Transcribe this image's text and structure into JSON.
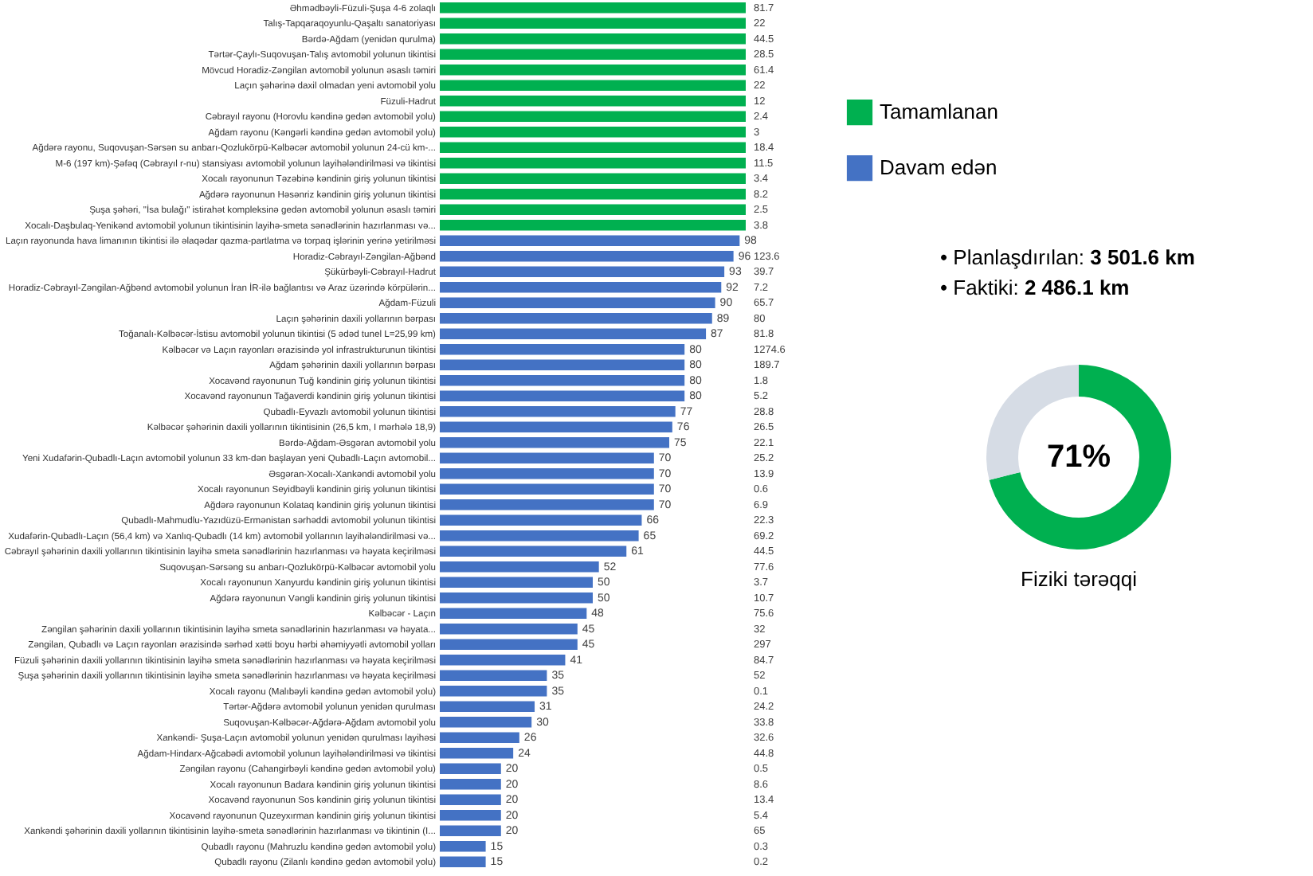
{
  "chart_data": [
    {
      "type": "bar",
      "orientation": "horizontal",
      "tick_labels": "y",
      "legend": "top right",
      "categories": [
        "Əhmədbəyli-Füzuli-Şuşa 4-6 zolaqlı",
        "Talış-Tapqaraqoyunlu-Qaşaltı sanatoriyası",
        "Bərdə-Ağdam (yenidən qurulma)",
        "Tərtər-Çaylı-Suqovuşan-Talış avtomobil yolunun tikintisi",
        "Mövcud Horadiz-Zəngilan avtomobil yolunun əsaslı təmiri",
        "Laçın şəhərinə daxil olmadan yeni avtomobil yolu",
        "Füzuli-Hadrut",
        "Cəbrayıl rayonu (Horovlu kəndinə gedən avtomobil yolu)",
        "Ağdam rayonu (Kəngərli kəndinə gedən avtomobil yolu)",
        "Ağdərə rayonu, Suqovuşan-Sərsən su anbarı-Qozlukörpü-Kəlbəcər avtomobil yolunun 24-cü km-...",
        "M-6 (197 km)-Şəfəq (Cəbrayıl r-nu) stansiyası avtomobil yolunun layihələndirilməsi və tikintisi",
        "Xocalı rayonunun Təzəbinə kəndinin giriş yolunun tikintisi",
        "Ağdərə rayonunun Həsənriz kəndinin giriş yolunun tikintisi",
        "Şuşa şəhəri, \"İsa bulağı\" istirahət kompleksinə gedən avtomobil yolunun əsaslı təmiri",
        "Xocalı-Daşbulaq-Yenikənd avtomobil yolunun tikintisinin layihə-smeta sənədlərinin hazırlanması və...",
        "Laçın rayonunda hava limanının tikintisi ilə əlaqədar qazma-partlatma və torpaq işlərinin yerinə yetirilməsi",
        "Horadiz-Cəbrayıl-Zəngilan-Ağbənd",
        "Şükürbəyli-Cəbrayıl-Hadrut",
        "Horadiz-Cəbrayıl-Zəngilan-Ağbənd avtomobil yolunun İran İR-ilə bağlantısı və Araz üzərində körpülərin...",
        "Ağdam-Füzuli",
        "Laçın şəhərinin daxili yollarının bərpası",
        "Toğanalı-Kəlbəcər-İstisu avtomobil yolunun tikintisi (5 ədəd tunel L=25,99 km)",
        "Kəlbəcər və Laçın rayonları ərazisində yol infrastrukturunun tikintisi",
        "Ağdam şəhərinin daxili yollarının bərpası",
        "Xocavənd rayonunun Tuğ kəndinin giriş yolunun tikintisi",
        "Xocavənd rayonunun Tağaverdi kəndinin giriş yolunun tikintisi",
        "Qubadlı-Eyvazlı avtomobil yolunun tikintisi",
        "Kəlbəcər şəhərinin daxili yollarının tikintisinin (26,5 km, I mərhələ 18,9)",
        "Bərdə-Ağdam-Əsgəran avtomobil yolu",
        "Yeni Xudafərin-Qubadlı-Laçın avtomobil yolunun 33 km-dən başlayan yeni Qubadlı-Laçın avtomobil...",
        "Əsgəran-Xocalı-Xankəndi avtomobil yolu",
        "Xocalı rayonunun Seyidbəyli kəndinin giriş yolunun tikintisi",
        "Ağdərə rayonunun Kolataq kəndinin giriş yolunun tikintisi",
        "Qubadlı-Mahmudlu-Yazıdüzü-Ermənistan sərhəddi avtomobil yolunun tikintisi",
        "Xudafərin-Qubadlı-Laçın (56,4 km) və Xanlıq-Qubadlı (14 km) avtomobil yollarının layihələndirilməsi və...",
        "Cəbrayıl şəhərinin daxili yollarının tikintisinin layihə smeta sənədlərinin hazırlanması və həyata keçirilməsi",
        "Suqovuşan-Sərsəng su anbarı-Qozlukörpü-Kəlbəcər avtomobil yolu",
        "Xocalı rayonunun Xanyurdu kəndinin giriş yolunun tikintisi",
        "Ağdərə rayonunun Vəngli kəndinin giriş yolunun tikintisi",
        "Kəlbəcər - Laçın",
        "Zəngilan şəhərinin daxili yollarının tikintisinin layihə smeta sənədlərinin hazırlanması və həyata...",
        "Zəngilan, Qubadlı və Laçın rayonları ərazisində sərhəd xətti boyu hərbi əhəmiyyətli avtomobil yolları",
        "Füzuli şəhərinin daxili yollarının tikintisinin layihə smeta sənədlərinin hazırlanması və həyata keçirilməsi",
        "Şuşa şəhərinin daxili yollarının tikintisinin layihə smeta sənədlərinin hazırlanması və həyata keçirilməsi",
        "Xocalı rayonu (Malıbəyli kəndinə gedən avtomobil yolu)",
        "Tərtər-Ağdərə avtomobil yolunun yenidən qurulması",
        "Suqovuşan-Kəlbəcər-Ağdərə-Ağdam avtomobil yolu",
        "Xankəndi- Şuşa-Laçın avtomobil yolunun yenidən qurulması layihəsi",
        "Ağdam-Hindarx-Ağcabədi avtomobil yolunun layihələndirilməsi və tikintisi",
        "Zəngilan rayonu (Cahangirbəyli kəndinə gedən avtomobil yolu)",
        "Xocalı rayonunun Badara kəndinin giriş yolunun tikintisi",
        "Xocavənd rayonunun Sos kəndinin giriş yolunun tikintisi",
        "Xocavənd rayonunun Quzeyxırman kəndinin giriş yolunun tikintisi",
        "Xankəndi şəhərinin daxili yollarının tikintisinin layihə-smeta sənədlərinin hazırlanması və tikintinin (I...",
        "Qubadlı rayonu (Mahruzlu kəndinə gedən avtomobil yolu)",
        "Qubadlı rayonu (Zilanlı kəndinə gedən avtomobil yolu)"
      ],
      "y2_categories": [
        "81.7",
        "22",
        "44.5",
        "28.5",
        "61.4",
        "22",
        "12",
        "2.4",
        "3",
        "18.4",
        "11.5",
        "3.4",
        "8.2",
        "2.5",
        "3.8",
        null,
        "123.6",
        "39.7",
        "7.2",
        "65.7",
        "80",
        "81.8",
        "1274.6",
        "189.7",
        "1.8",
        "5.2",
        "28.8",
        "26.5",
        "22.1",
        "25.2",
        "13.9",
        "0.6",
        "6.9",
        "22.3",
        "69.2",
        "44.5",
        "77.6",
        "3.7",
        "10.7",
        "75.6",
        "32",
        "297",
        "84.7",
        "52",
        "0.1",
        "24.2",
        "33.8",
        "32.6",
        "44.8",
        "0.5",
        "8.6",
        "13.4",
        "5.4",
        "65",
        "0.3",
        "0.2"
      ],
      "series": [
        {
          "name": "Tamamlanan",
          "color": "#00b050",
          "values": [
            100,
            100,
            100,
            100,
            100,
            100,
            100,
            100,
            100,
            100,
            100,
            100,
            100,
            100,
            100,
            null,
            null,
            null,
            null,
            null,
            null,
            null,
            null,
            null,
            null,
            null,
            null,
            null,
            null,
            null,
            null,
            null,
            null,
            null,
            null,
            null,
            null,
            null,
            null,
            null,
            null,
            null,
            null,
            null,
            null,
            null,
            null,
            null,
            null,
            null,
            null,
            null,
            null,
            null,
            null,
            null
          ]
        },
        {
          "name": "Davam edən",
          "color": "#4472c4",
          "values": [
            null,
            null,
            null,
            null,
            null,
            null,
            null,
            null,
            null,
            null,
            null,
            null,
            null,
            null,
            null,
            98,
            96,
            93,
            92,
            90,
            89,
            87,
            80,
            80,
            80,
            80,
            77,
            76,
            75,
            70,
            70,
            70,
            70,
            66,
            65,
            61,
            52,
            50,
            50,
            48,
            45,
            45,
            41,
            35,
            35,
            31,
            30,
            26,
            24,
            20,
            20,
            20,
            20,
            20,
            15,
            15
          ],
          "value_labels": [
            null,
            null,
            null,
            null,
            null,
            null,
            null,
            null,
            null,
            null,
            null,
            null,
            null,
            null,
            null,
            "98",
            "96",
            "93",
            "92",
            "90",
            "89",
            "87",
            "80",
            "80",
            "80",
            "80",
            "77",
            "76",
            "75",
            "70",
            "70",
            "70",
            "70",
            "66",
            "65",
            "61",
            "52",
            "50",
            "50",
            "48",
            "45",
            "45",
            "41",
            "35",
            "35",
            "31",
            "30",
            "26",
            "24",
            "20",
            "20",
            "20",
            "20",
            "20",
            "15",
            "15"
          ]
        }
      ],
      "annotations": [
        "• Planlaşdırılan: 3 501.6 km",
        "• Faktiki: 2 486.1 km"
      ]
    },
    {
      "type": "donut",
      "title": "Fiziki tərəqqi",
      "categories": [
        null,
        null
      ],
      "values": [
        71,
        29
      ],
      "colors": [
        "#00b050",
        "#d6dce5"
      ],
      "annotations": [
        "71%"
      ]
    }
  ]
}
